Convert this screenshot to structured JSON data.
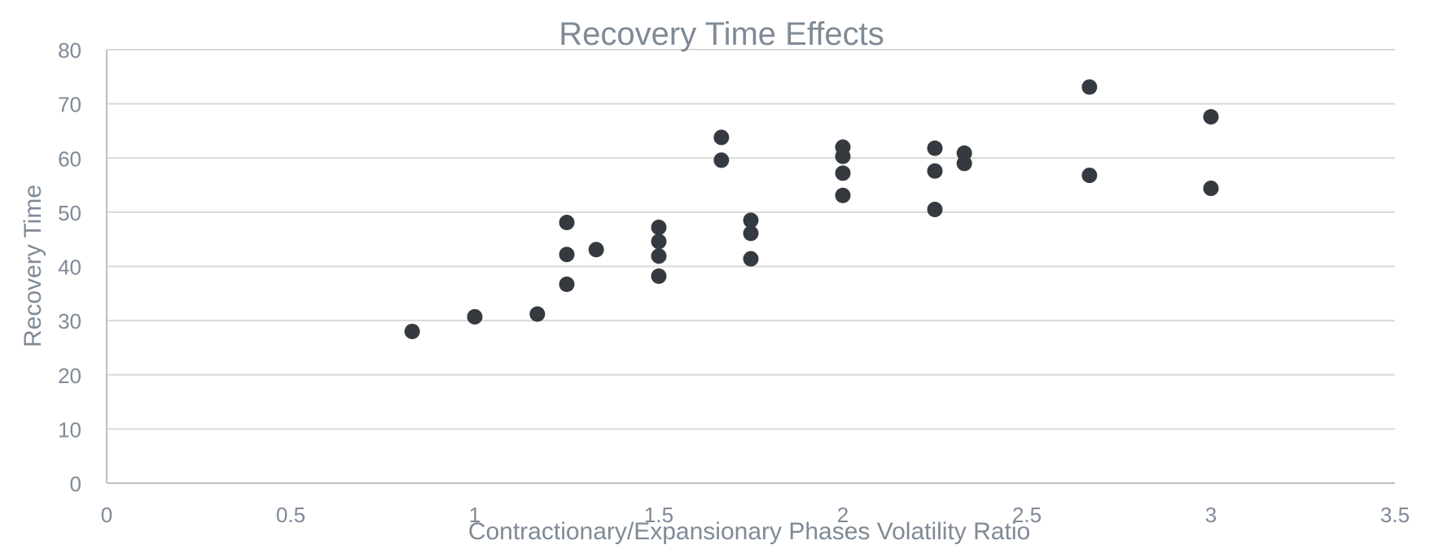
{
  "colors": {
    "text": "#7f8a96",
    "grid": "#d9d9d9",
    "axis": "#bfbfbf",
    "marker": "#343a40"
  },
  "chart_data": {
    "type": "scatter",
    "title": "Recovery Time Effects",
    "xlabel": "Contractionary/Expansionary Phases Volatility Ratio",
    "ylabel": "Recovery Time",
    "xlim": [
      0,
      3.5
    ],
    "ylim": [
      0,
      80
    ],
    "x_ticks": [
      0,
      0.5,
      1,
      1.5,
      2,
      2.5,
      3,
      3.5
    ],
    "x_tick_labels": [
      "0",
      "0.5",
      "1",
      "1.5",
      "2",
      "2.5",
      "3",
      "3.5"
    ],
    "y_ticks": [
      0,
      10,
      20,
      30,
      40,
      50,
      60,
      70,
      80
    ],
    "y_tick_labels": [
      "0",
      "10",
      "20",
      "30",
      "40",
      "50",
      "60",
      "70",
      "80"
    ],
    "grid": "horizontal",
    "legend": "none",
    "series": [
      {
        "points": [
          [
            0.83,
            28.0
          ],
          [
            1.0,
            30.7
          ],
          [
            1.17,
            31.2
          ],
          [
            1.25,
            36.7
          ],
          [
            1.25,
            42.2
          ],
          [
            1.25,
            48.1
          ],
          [
            1.33,
            43.1
          ],
          [
            1.5,
            38.2
          ],
          [
            1.5,
            41.9
          ],
          [
            1.5,
            44.6
          ],
          [
            1.5,
            47.2
          ],
          [
            1.67,
            59.6
          ],
          [
            1.67,
            63.8
          ],
          [
            1.75,
            41.4
          ],
          [
            1.75,
            46.1
          ],
          [
            1.75,
            48.5
          ],
          [
            2.0,
            53.1
          ],
          [
            2.0,
            57.2
          ],
          [
            2.0,
            60.3
          ],
          [
            2.0,
            62.0
          ],
          [
            2.25,
            50.5
          ],
          [
            2.25,
            57.6
          ],
          [
            2.25,
            61.8
          ],
          [
            2.33,
            59.0
          ],
          [
            2.33,
            60.9
          ],
          [
            2.67,
            56.8
          ],
          [
            2.67,
            73.1
          ],
          [
            3.0,
            54.4
          ],
          [
            3.0,
            67.6
          ]
        ]
      }
    ]
  }
}
